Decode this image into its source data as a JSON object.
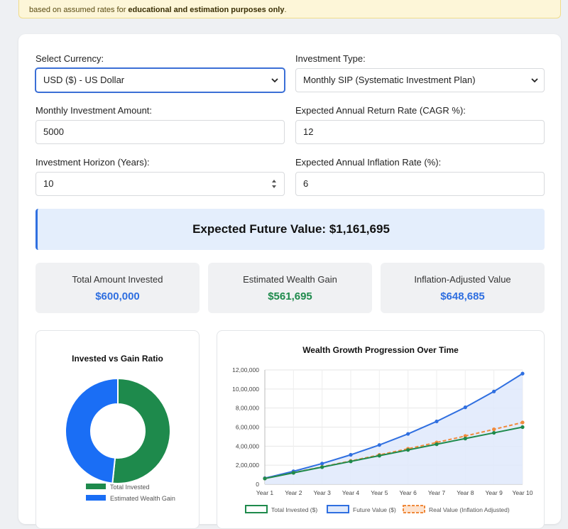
{
  "notice": {
    "prefix": "based on assumed rates for ",
    "bold": "educational and estimation purposes only",
    "suffix": "."
  },
  "form": {
    "currency": {
      "label": "Select Currency:",
      "value": "USD ($) - US Dollar"
    },
    "investment_type": {
      "label": "Investment Type:",
      "value": "Monthly SIP (Systematic Investment Plan)"
    },
    "monthly_amount": {
      "label": "Monthly Investment Amount:",
      "value": "5000"
    },
    "return_rate": {
      "label": "Expected Annual Return Rate (CAGR %):",
      "value": "12"
    },
    "horizon": {
      "label": "Investment Horizon (Years):",
      "value": "10"
    },
    "inflation": {
      "label": "Expected Annual Inflation Rate (%):",
      "value": "6"
    }
  },
  "result": {
    "text": "Expected Future Value: $1,161,695"
  },
  "stats": [
    {
      "label": "Total Amount Invested",
      "value": "$600,000",
      "color": "#2f6fe0"
    },
    {
      "label": "Estimated Wealth Gain",
      "value": "$561,695",
      "color": "#1e8a4c"
    },
    {
      "label": "Inflation-Adjusted Value",
      "value": "$648,685",
      "color": "#2f6fe0"
    }
  ],
  "chart_data": [
    {
      "type": "pie",
      "title": "Invested vs Gain Ratio",
      "categories": [
        "Total Invested",
        "Estimated Wealth Gain"
      ],
      "values": [
        600000,
        561695
      ],
      "colors": [
        "#1e8a4c",
        "#1a6ef5"
      ],
      "donut": true,
      "legend": "bottom"
    },
    {
      "type": "line",
      "title": "Wealth Growth Progression Over Time",
      "x": [
        "Year 1",
        "Year 2",
        "Year 3",
        "Year 4",
        "Year 5",
        "Year 6",
        "Year 7",
        "Year 8",
        "Year 9",
        "Year 10"
      ],
      "series": [
        {
          "name": "Total Invested ($)",
          "color": "#1e8a4c",
          "values": [
            60000,
            120000,
            180000,
            240000,
            300000,
            360000,
            420000,
            480000,
            540000,
            600000
          ]
        },
        {
          "name": "Future Value ($)",
          "color": "#2f6fe0",
          "fill": "#dfe9fb",
          "values": [
            64047,
            136216,
            217538,
            309175,
            412432,
            528785,
            659895,
            807636,
            974117,
            1161695
          ]
        },
        {
          "name": "Real Value (Inflation Adjusted)",
          "color": "#f08a3c",
          "dashed": true,
          "values": [
            60422,
            121233,
            182650,
            244901,
            308193,
            372775,
            438870,
            506689,
            576539,
            648685
          ]
        }
      ],
      "yticks": [
        "0",
        "2,00,000",
        "4,00,000",
        "6,00,000",
        "8,00,000",
        "10,00,000",
        "12,00,000"
      ],
      "ylim": [
        0,
        1200000
      ],
      "grid": true,
      "legend": "bottom"
    }
  ]
}
